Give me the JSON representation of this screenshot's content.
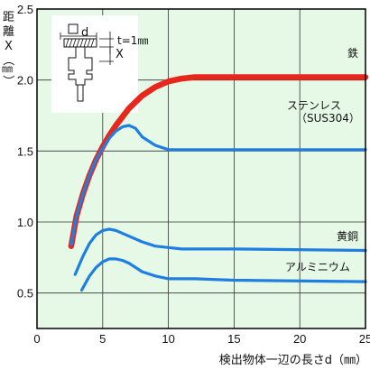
{
  "chart_data": {
    "type": "line",
    "title": "",
    "xlabel": "検出物体一辺の長さd（㎜）",
    "ylabel": [
      "距",
      "離",
      "X",
      "（",
      "㎜",
      "）"
    ],
    "xlim": [
      0,
      25
    ],
    "ylim": [
      0.25,
      2.5
    ],
    "x_ticks": [
      "0",
      "5",
      "10",
      "15",
      "20",
      "25"
    ],
    "y_ticks": [
      "0.5",
      "1.0",
      "1.5",
      "2.0",
      "2.5"
    ],
    "grid": true,
    "series": [
      {
        "name": "鉄",
        "color": "#e8271c",
        "x": [
          2.6,
          3.0,
          3.5,
          4.0,
          4.5,
          5.0,
          5.5,
          6.0,
          7.0,
          8.0,
          9.0,
          10.0,
          11.0,
          12.0,
          13.0,
          25.0
        ],
        "y": [
          0.83,
          1.04,
          1.2,
          1.33,
          1.44,
          1.53,
          1.61,
          1.68,
          1.8,
          1.89,
          1.95,
          1.99,
          2.01,
          2.02,
          2.02,
          2.02
        ]
      },
      {
        "name": "ステンレス（SUS304）",
        "color": "#1f7fe0",
        "x": [
          2.6,
          3.0,
          3.5,
          4.0,
          4.5,
          5.0,
          5.5,
          6.0,
          6.5,
          7.0,
          7.5,
          8.0,
          9.0,
          10.0,
          11.0,
          12.0,
          25.0
        ],
        "y": [
          0.84,
          1.04,
          1.2,
          1.33,
          1.44,
          1.52,
          1.59,
          1.64,
          1.67,
          1.68,
          1.66,
          1.6,
          1.54,
          1.51,
          1.51,
          1.51,
          1.51
        ]
      },
      {
        "name": "黄銅",
        "color": "#1f7fe0",
        "x": [
          2.9,
          3.5,
          4.0,
          4.5,
          5.0,
          5.5,
          6.0,
          7.0,
          8.0,
          9.0,
          10.0,
          11.0,
          12.0,
          15.0,
          25.0
        ],
        "y": [
          0.63,
          0.76,
          0.85,
          0.91,
          0.94,
          0.95,
          0.94,
          0.9,
          0.86,
          0.83,
          0.82,
          0.81,
          0.81,
          0.81,
          0.8
        ]
      },
      {
        "name": "アルミニウム",
        "color": "#1f7fe0",
        "x": [
          3.4,
          4.0,
          4.5,
          5.0,
          5.5,
          6.0,
          6.5,
          7.0,
          8.0,
          9.0,
          10.0,
          11.0,
          12.0,
          15.0,
          25.0
        ],
        "y": [
          0.52,
          0.62,
          0.68,
          0.72,
          0.74,
          0.74,
          0.73,
          0.71,
          0.65,
          0.62,
          0.6,
          0.6,
          0.6,
          0.59,
          0.58
        ]
      }
    ],
    "series_labels": [
      "鉄",
      "ステンレス",
      "（SUS304）",
      "黄銅",
      "アルミニウム"
    ],
    "inset": {
      "d_label": "d",
      "t_label": "t=1㎜",
      "x_label": "X"
    },
    "colors": {
      "plot_bg": "#e6f8e6",
      "grid": "#333333",
      "axis": "#000000"
    }
  }
}
